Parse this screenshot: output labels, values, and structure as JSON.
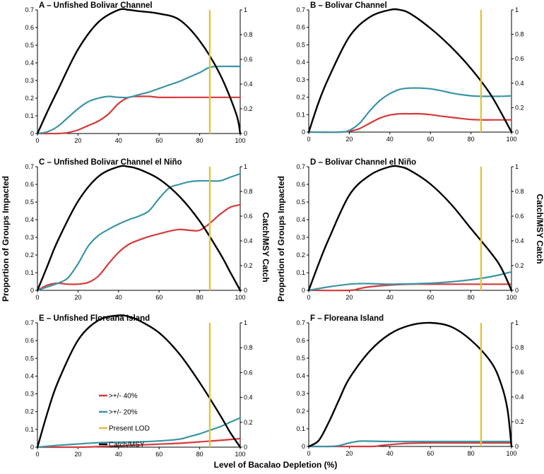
{
  "figure": {
    "xlabel": "Level of Bacalao Depletion (%)",
    "ylabel_left": "Proportion of Groups Impacted",
    "ylabel_right": "Catch/MSY Catch"
  },
  "legend": {
    "items": [
      {
        "label": ">+/- 40%",
        "color": "#d63a3a"
      },
      {
        "label": ">+/- 20%",
        "color": "#3a94a6"
      },
      {
        "label": "Present LOD",
        "color": "#e2c43a"
      },
      {
        "label": "Catch/MSY",
        "color": "#000000"
      }
    ]
  },
  "chart_data": [
    {
      "type": "line",
      "title": "A – Unfished Bolivar Channel",
      "xlim": [
        0,
        100
      ],
      "ylim_left": [
        0,
        0.7
      ],
      "ylim_right": [
        0,
        1
      ],
      "x_ticks": [
        0,
        20,
        40,
        60,
        80,
        100
      ],
      "y_ticks_left": [
        0,
        0.1,
        0.2,
        0.3,
        0.4,
        0.5,
        0.6,
        0.7
      ],
      "y_ticks_right": [
        0,
        0.2,
        0.4,
        0.6,
        0.8,
        1
      ],
      "present_lod": 85,
      "series": [
        {
          "name": "Catch/MSY",
          "axis": "right",
          "x": [
            0,
            5,
            10,
            20,
            30,
            40,
            45,
            50,
            60,
            70,
            80,
            90,
            98,
            100
          ],
          "y": [
            0,
            0.18,
            0.35,
            0.68,
            0.9,
            1.0,
            1.0,
            0.99,
            0.97,
            0.92,
            0.75,
            0.48,
            0.16,
            0
          ]
        },
        {
          "name": ">+/- 20%",
          "axis": "left",
          "x": [
            0,
            5,
            10,
            15,
            20,
            25,
            30,
            35,
            40,
            45,
            50,
            55,
            60,
            65,
            70,
            75,
            80,
            85,
            90,
            95,
            100
          ],
          "y": [
            0,
            0.01,
            0.04,
            0.09,
            0.14,
            0.18,
            0.2,
            0.21,
            0.205,
            0.205,
            0.22,
            0.235,
            0.255,
            0.275,
            0.295,
            0.32,
            0.345,
            0.375,
            0.38,
            0.38,
            0.38
          ]
        },
        {
          "name": ">+/- 40%",
          "axis": "left",
          "x": [
            0,
            10,
            15,
            20,
            25,
            30,
            35,
            40,
            45,
            50,
            55,
            60,
            70,
            80,
            90,
            100
          ],
          "y": [
            0,
            0,
            0.005,
            0.02,
            0.045,
            0.07,
            0.11,
            0.17,
            0.205,
            0.21,
            0.21,
            0.205,
            0.205,
            0.205,
            0.205,
            0.205
          ]
        }
      ]
    },
    {
      "type": "line",
      "title": "B – Bolivar Channel",
      "xlim": [
        0,
        100
      ],
      "ylim_left": [
        0,
        0.7
      ],
      "ylim_right": [
        0,
        1
      ],
      "x_ticks": [
        0,
        20,
        40,
        60,
        80,
        100
      ],
      "y_ticks_left": [
        0,
        0.1,
        0.2,
        0.3,
        0.4,
        0.5,
        0.6,
        0.7
      ],
      "y_ticks_right": [
        0,
        0.2,
        0.4,
        0.6,
        0.8,
        1
      ],
      "present_lod": 85,
      "series": [
        {
          "name": "Catch/MSY",
          "axis": "right",
          "x": [
            0,
            5,
            10,
            20,
            30,
            40,
            45,
            50,
            60,
            70,
            80,
            90,
            100
          ],
          "y": [
            0,
            0.25,
            0.45,
            0.78,
            0.94,
            1.0,
            1.0,
            0.97,
            0.85,
            0.7,
            0.52,
            0.3,
            0
          ]
        },
        {
          "name": ">+/- 20%",
          "axis": "left",
          "x": [
            0,
            15,
            20,
            25,
            30,
            35,
            40,
            45,
            50,
            55,
            60,
            65,
            70,
            75,
            80,
            85,
            90,
            95,
            100
          ],
          "y": [
            0,
            0,
            0.01,
            0.05,
            0.12,
            0.18,
            0.22,
            0.245,
            0.252,
            0.252,
            0.248,
            0.238,
            0.225,
            0.215,
            0.208,
            0.205,
            0.205,
            0.205,
            0.208
          ]
        },
        {
          "name": ">+/- 40%",
          "axis": "left",
          "x": [
            0,
            15,
            20,
            25,
            30,
            35,
            40,
            45,
            50,
            55,
            60,
            65,
            70,
            75,
            80,
            85,
            90,
            95,
            100
          ],
          "y": [
            0,
            0,
            0.005,
            0.02,
            0.05,
            0.08,
            0.098,
            0.105,
            0.105,
            0.105,
            0.1,
            0.092,
            0.085,
            0.078,
            0.072,
            0.07,
            0.07,
            0.07,
            0.07
          ]
        }
      ]
    },
    {
      "type": "line",
      "title": "C – Unfished Bolivar Channel el Niño",
      "xlim": [
        0,
        100
      ],
      "ylim_left": [
        0,
        0.7
      ],
      "ylim_right": [
        0,
        1
      ],
      "x_ticks": [
        0,
        20,
        40,
        60,
        80,
        100
      ],
      "y_ticks_left": [
        0,
        0.1,
        0.2,
        0.3,
        0.4,
        0.5,
        0.6,
        0.7
      ],
      "y_ticks_right": [
        0,
        0.2,
        0.4,
        0.6,
        0.8,
        1
      ],
      "present_lod": 85,
      "series": [
        {
          "name": "Catch/MSY",
          "axis": "right",
          "x": [
            0,
            5,
            10,
            20,
            30,
            40,
            45,
            50,
            60,
            70,
            80,
            90,
            95,
            100
          ],
          "y": [
            0,
            0.2,
            0.4,
            0.72,
            0.92,
            1.0,
            1.0,
            0.98,
            0.9,
            0.76,
            0.56,
            0.3,
            0.15,
            0
          ]
        },
        {
          "name": ">+/- 20%",
          "axis": "left",
          "x": [
            0,
            5,
            10,
            15,
            20,
            25,
            30,
            35,
            40,
            45,
            50,
            55,
            60,
            65,
            70,
            75,
            80,
            85,
            90,
            95,
            100
          ],
          "y": [
            0,
            0.02,
            0.04,
            0.07,
            0.15,
            0.25,
            0.31,
            0.345,
            0.375,
            0.4,
            0.42,
            0.45,
            0.52,
            0.58,
            0.6,
            0.615,
            0.62,
            0.62,
            0.62,
            0.64,
            0.66
          ]
        },
        {
          "name": ">+/- 40%",
          "axis": "left",
          "x": [
            0,
            5,
            10,
            15,
            20,
            25,
            30,
            35,
            40,
            45,
            50,
            55,
            60,
            65,
            70,
            75,
            80,
            85,
            90,
            95,
            100
          ],
          "y": [
            0,
            0.03,
            0.04,
            0.035,
            0.035,
            0.045,
            0.08,
            0.15,
            0.215,
            0.26,
            0.285,
            0.305,
            0.32,
            0.335,
            0.345,
            0.34,
            0.34,
            0.38,
            0.43,
            0.47,
            0.485
          ]
        }
      ]
    },
    {
      "type": "line",
      "title": "D – Bolivar Channel el Niño",
      "xlim": [
        0,
        100
      ],
      "ylim_left": [
        0,
        0.7
      ],
      "ylim_right": [
        0,
        1
      ],
      "x_ticks": [
        0,
        20,
        40,
        60,
        80,
        100
      ],
      "y_ticks_left": [
        0,
        0.1,
        0.2,
        0.3,
        0.4,
        0.5,
        0.6,
        0.7
      ],
      "y_ticks_right": [
        0,
        0.2,
        0.4,
        0.6,
        0.8,
        1
      ],
      "present_lod": 85,
      "series": [
        {
          "name": "Catch/MSY",
          "axis": "right",
          "x": [
            0,
            5,
            10,
            20,
            30,
            40,
            45,
            50,
            60,
            70,
            80,
            90,
            95,
            100
          ],
          "y": [
            0,
            0.22,
            0.42,
            0.77,
            0.93,
            1.0,
            1.0,
            0.97,
            0.86,
            0.7,
            0.5,
            0.3,
            0.18,
            0
          ]
        },
        {
          "name": ">+/- 20%",
          "axis": "left",
          "x": [
            0,
            10,
            20,
            25,
            30,
            40,
            50,
            60,
            70,
            80,
            85,
            90,
            95,
            100
          ],
          "y": [
            0,
            0.02,
            0.035,
            0.038,
            0.038,
            0.035,
            0.037,
            0.04,
            0.048,
            0.06,
            0.068,
            0.078,
            0.09,
            0.105
          ]
        },
        {
          "name": ">+/- 40%",
          "axis": "left",
          "x": [
            0,
            20,
            25,
            30,
            40,
            50,
            60,
            70,
            80,
            90,
            100
          ],
          "y": [
            0,
            0,
            0.01,
            0.02,
            0.03,
            0.035,
            0.035,
            0.035,
            0.035,
            0.035,
            0.035
          ]
        }
      ]
    },
    {
      "type": "line",
      "title": "E – Unfished Floreana Island",
      "xlim": [
        0,
        100
      ],
      "ylim_left": [
        0,
        0.7
      ],
      "ylim_right": [
        0,
        1
      ],
      "x_ticks": [
        0,
        20,
        40,
        60,
        80,
        100
      ],
      "y_ticks_left": [
        0,
        0.1,
        0.2,
        0.3,
        0.4,
        0.5,
        0.6,
        0.7
      ],
      "y_ticks_right": [
        0,
        0.2,
        0.4,
        0.6,
        0.8,
        1
      ],
      "present_lod": 85,
      "series": [
        {
          "name": "Catch/MSY",
          "axis": "right",
          "x": [
            0,
            5,
            10,
            20,
            30,
            40,
            45,
            50,
            60,
            70,
            80,
            90,
            95,
            100
          ],
          "y": [
            0,
            0.28,
            0.52,
            0.86,
            1.02,
            1.06,
            1.05,
            1.02,
            0.92,
            0.75,
            0.52,
            0.26,
            0.12,
            0
          ]
        },
        {
          "name": ">+/- 20%",
          "axis": "left",
          "x": [
            0,
            10,
            20,
            30,
            40,
            50,
            60,
            70,
            75,
            80,
            85,
            90,
            95,
            100
          ],
          "y": [
            0,
            0.01,
            0.018,
            0.025,
            0.028,
            0.03,
            0.035,
            0.045,
            0.06,
            0.075,
            0.095,
            0.115,
            0.14,
            0.165
          ]
        },
        {
          "name": ">+/- 40%",
          "axis": "left",
          "x": [
            0,
            20,
            30,
            40,
            50,
            60,
            70,
            80,
            90,
            100
          ],
          "y": [
            0,
            0,
            0.003,
            0.007,
            0.012,
            0.017,
            0.022,
            0.03,
            0.038,
            0.048
          ]
        }
      ]
    },
    {
      "type": "line",
      "title": "F – Floreana Island",
      "xlim": [
        0,
        100
      ],
      "ylim_left": [
        0,
        0.7
      ],
      "ylim_right": [
        0,
        1
      ],
      "x_ticks": [
        0,
        20,
        40,
        60,
        80,
        100
      ],
      "y_ticks_left": [
        0,
        0.1,
        0.2,
        0.3,
        0.4,
        0.5,
        0.6,
        0.7
      ],
      "y_ticks_right": [
        0,
        0.2,
        0.4,
        0.6,
        0.8,
        1
      ],
      "present_lod": 85,
      "series": [
        {
          "name": "Catch/MSY",
          "axis": "right",
          "x": [
            0,
            5,
            10,
            15,
            20,
            30,
            40,
            50,
            60,
            70,
            80,
            90,
            95,
            98,
            100
          ],
          "y": [
            0,
            0.05,
            0.2,
            0.38,
            0.55,
            0.77,
            0.91,
            0.98,
            1.0,
            0.97,
            0.86,
            0.68,
            0.5,
            0.3,
            0
          ]
        },
        {
          "name": ">+/- 20%",
          "axis": "left",
          "x": [
            0,
            10,
            15,
            20,
            25,
            30,
            40,
            50,
            60,
            70,
            80,
            90,
            100
          ],
          "y": [
            0,
            0,
            0.005,
            0.02,
            0.03,
            0.03,
            0.028,
            0.028,
            0.028,
            0.028,
            0.028,
            0.028,
            0.028
          ]
        },
        {
          "name": ">+/- 40%",
          "axis": "left",
          "x": [
            0,
            30,
            35,
            40,
            45,
            50,
            60,
            70,
            80,
            90,
            100
          ],
          "y": [
            0,
            0,
            0.005,
            0.01,
            0.015,
            0.018,
            0.02,
            0.02,
            0.02,
            0.02,
            0.02
          ]
        }
      ]
    }
  ]
}
